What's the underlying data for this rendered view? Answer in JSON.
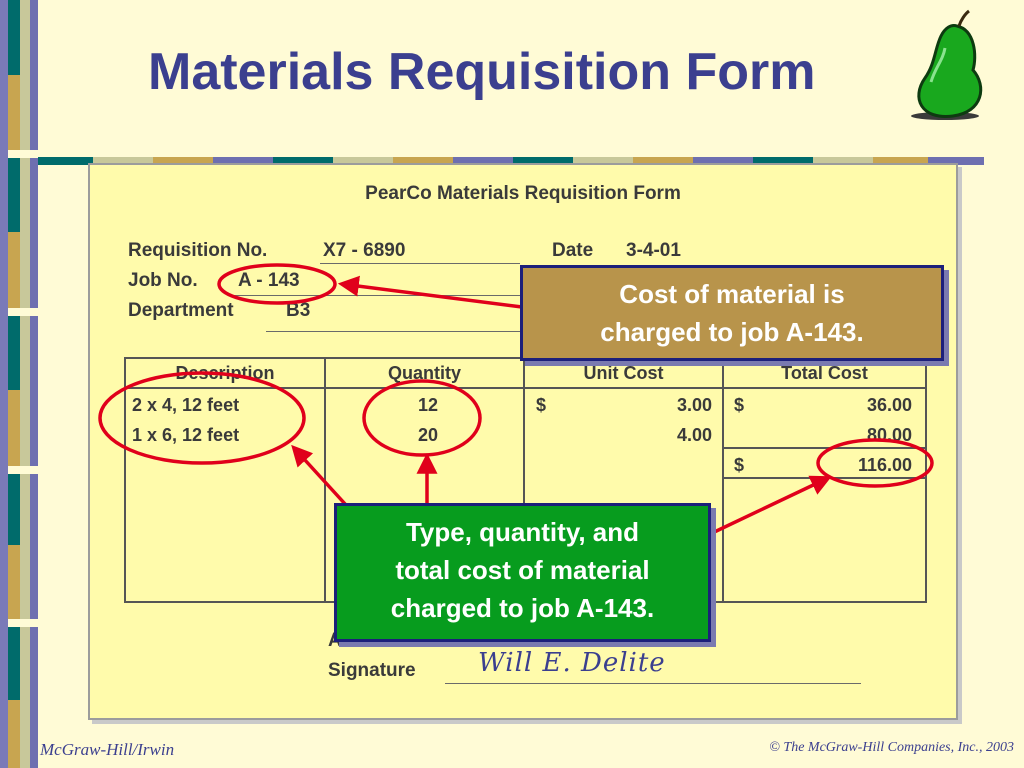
{
  "slide": {
    "title": "Materials Requisition Form",
    "pear_icon": "pear-icon"
  },
  "form": {
    "title": "PearCo Materials Requisition Form",
    "requisition_label": "Requisition No.",
    "requisition_value": "X7 - 6890",
    "date_label": "Date",
    "date_value": "3-4-01",
    "job_label": "Job No.",
    "job_value": "A - 143",
    "department_label": "Department",
    "department_value": "B3",
    "columns": [
      "Description",
      "Quantity",
      "Unit Cost",
      "Total Cost"
    ],
    "rows": [
      {
        "description": "2 x 4, 12 feet",
        "quantity": "12",
        "unit_symbol": "$",
        "unit_cost": "3.00",
        "total_symbol": "$",
        "total_cost": "36.00"
      },
      {
        "description": "1 x 6, 12 feet",
        "quantity": "20",
        "unit_symbol": "",
        "unit_cost": "4.00",
        "total_symbol": "",
        "total_cost": "80.00"
      }
    ],
    "grand_total_symbol": "$",
    "grand_total": "116.00",
    "authorized_label": "Authorized",
    "signature_label": "Signature",
    "signature": "Will E. Delite"
  },
  "callouts": {
    "top": [
      "Cost of material is",
      "charged to job A-143."
    ],
    "bottom": [
      "Type, quantity, and",
      "total cost of material",
      "charged to job A-143."
    ]
  },
  "footer": {
    "left": "McGraw-Hill/Irwin",
    "right": "© The McGraw-Hill Companies, Inc., 2003"
  },
  "colors": {
    "background": "#fffbd6",
    "title": "#3b3f8f",
    "form_background": "#fffbab",
    "callout_top": "#b8944b",
    "callout_bottom": "#079c1e",
    "annotation_red": "#e0001b",
    "strip_teal": "#006b6b",
    "strip_tan": "#c8a550",
    "strip_purple": "#6e6fb0",
    "strip_cream": "#c8c89a"
  }
}
